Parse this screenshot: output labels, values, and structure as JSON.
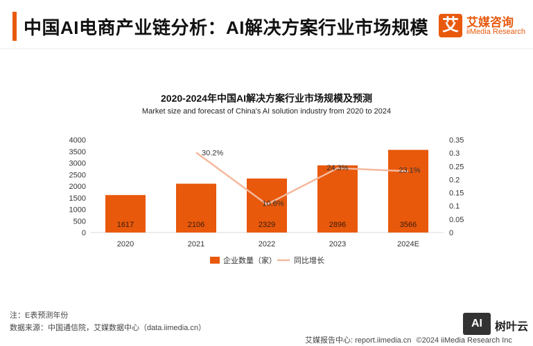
{
  "header": {
    "title": "中国AI电商产业链分析：AI解决方案行业市场规模",
    "logo_cn": "艾媒咨询",
    "logo_en": "iiMedia Research",
    "logo_mark": "艾"
  },
  "colors": {
    "bar": "#e8590c",
    "line": "#f4b89c",
    "accent": "#e8590c"
  },
  "chart_data": {
    "type": "bar",
    "title": "2020-2024年中国AI解决方案行业市场规模及预测",
    "subtitle": "Market size and forecast of China's AI solution industry from 2020 to 2024",
    "categories": [
      "2020",
      "2021",
      "2022",
      "2023",
      "2024E"
    ],
    "series": [
      {
        "name": "企业数量（家）",
        "type": "bar",
        "axis": "left",
        "values": [
          1617,
          2106,
          2329,
          2896,
          3566
        ],
        "labels": [
          "1617",
          "2106",
          "2329",
          "2896",
          "3566"
        ]
      },
      {
        "name": "同比增长",
        "type": "line",
        "axis": "right",
        "values": [
          null,
          0.302,
          0.106,
          0.243,
          0.231
        ],
        "labels": [
          "",
          "30.2%",
          "10.6%",
          "24.3%",
          "23.1%"
        ]
      }
    ],
    "y_left": {
      "min": 0,
      "max": 4000,
      "ticks": [
        "0",
        "500",
        "1000",
        "1500",
        "2000",
        "2500",
        "3000",
        "3500",
        "4000"
      ]
    },
    "y_right": {
      "min": 0,
      "max": 0.35,
      "ticks": [
        "0",
        "0.05",
        "0.1",
        "0.15",
        "0.2",
        "0.25",
        "0.3",
        "0.35"
      ]
    },
    "legend_position": "bottom",
    "grid": false
  },
  "footer": {
    "note": "注：E表预测年份",
    "source": "数据来源：中国通信院，艾媒数据中心（data.iimedia.cn）",
    "report_center": "艾媒报告中心: report.iimedia.cn",
    "copyright": "©2024  iiMedia Research  Inc"
  },
  "watermark": {
    "mark": "AI",
    "text": "树叶云"
  }
}
